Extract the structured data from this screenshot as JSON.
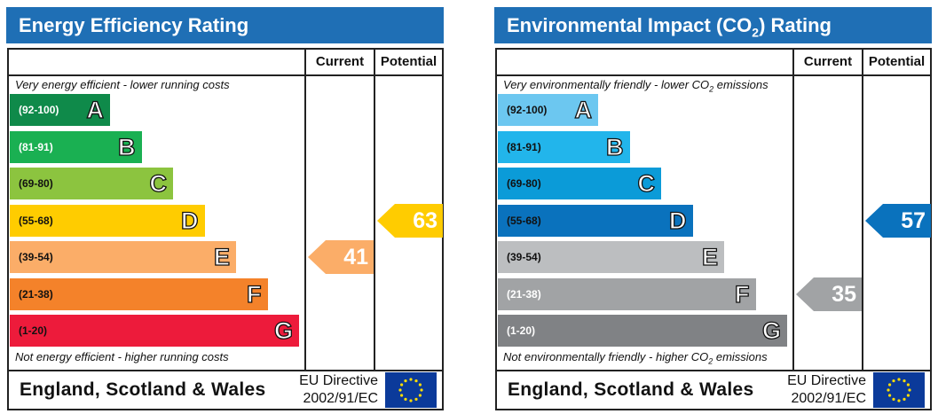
{
  "chart_data": [
    {
      "type": "bar",
      "title": "Energy Efficiency Rating",
      "columns": [
        "Current",
        "Potential"
      ],
      "top_caption": "Very energy efficient - lower running costs",
      "bottom_caption": "Not energy efficient - higher running costs",
      "bands": [
        {
          "range": "(92-100)",
          "letter": "A",
          "color": "#0f8a4a",
          "text_color": "#ffffff"
        },
        {
          "range": "(81-91)",
          "letter": "B",
          "color": "#1ab052",
          "text_color": "#ffffff"
        },
        {
          "range": "(69-80)",
          "letter": "C",
          "color": "#8cc43f",
          "text_color": "#111111"
        },
        {
          "range": "(55-68)",
          "letter": "D",
          "color": "#ffcc00",
          "text_color": "#111111"
        },
        {
          "range": "(39-54)",
          "letter": "E",
          "color": "#fbad68",
          "text_color": "#111111"
        },
        {
          "range": "(21-38)",
          "letter": "F",
          "color": "#f4822a",
          "text_color": "#111111"
        },
        {
          "range": "(1-20)",
          "letter": "G",
          "color": "#ed1b3b",
          "text_color": "#111111"
        }
      ],
      "current": {
        "value": 41,
        "band": "E",
        "color": "#fbad68"
      },
      "potential": {
        "value": 63,
        "band": "D",
        "color": "#ffcc00"
      },
      "footer": {
        "region": "England, Scotland & Wales",
        "directive_line1": "EU Directive",
        "directive_line2": "2002/91/EC"
      }
    },
    {
      "type": "bar",
      "title_prefix": "Environmental Impact (CO",
      "title_sub": "2",
      "title_suffix": ") Rating",
      "columns": [
        "Current",
        "Potential"
      ],
      "top_caption_prefix": "Very environmentally friendly - lower CO",
      "top_caption_sub": "2",
      "top_caption_suffix": " emissions",
      "bottom_caption_prefix": "Not environmentally friendly - higher CO",
      "bottom_caption_sub": "2",
      "bottom_caption_suffix": " emissions",
      "bands": [
        {
          "range": "(92-100)",
          "letter": "A",
          "color": "#6cc7f0",
          "text_color": "#111111"
        },
        {
          "range": "(81-91)",
          "letter": "B",
          "color": "#22b5eb",
          "text_color": "#111111"
        },
        {
          "range": "(69-80)",
          "letter": "C",
          "color": "#0b9bd8",
          "text_color": "#111111"
        },
        {
          "range": "(55-68)",
          "letter": "D",
          "color": "#0a72bd",
          "text_color": "#111111"
        },
        {
          "range": "(39-54)",
          "letter": "E",
          "color": "#bcbec0",
          "text_color": "#111111"
        },
        {
          "range": "(21-38)",
          "letter": "F",
          "color": "#a1a3a5",
          "text_color": "#ffffff"
        },
        {
          "range": "(1-20)",
          "letter": "G",
          "color": "#808285",
          "text_color": "#ffffff"
        }
      ],
      "current": {
        "value": 35,
        "band": "F",
        "color": "#a1a3a5"
      },
      "potential": {
        "value": 57,
        "band": "D",
        "color": "#0a72bd"
      },
      "footer": {
        "region": "England, Scotland & Wales",
        "directive_line1": "EU Directive",
        "directive_line2": "2002/91/EC"
      }
    }
  ]
}
